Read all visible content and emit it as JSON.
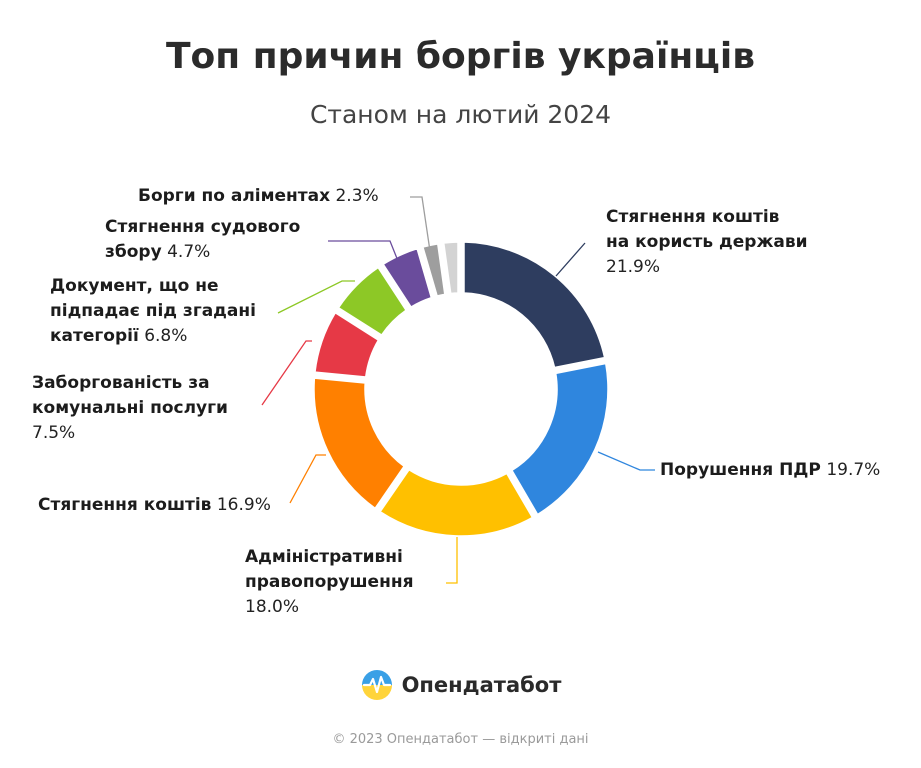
{
  "title": "Топ причин боргів українців",
  "subtitle": "Станом на лютий 2024",
  "brand": {
    "name": "Опендатабот",
    "icon": "opendatabot-logo-icon"
  },
  "footer": "© 2023 Опендатабот — відкриті дані",
  "chart_data": {
    "type": "pie",
    "subtype": "donut",
    "title": "Топ причин боргів українців",
    "subtitle": "Станом на лютий 2024",
    "unit": "%",
    "slices": [
      {
        "label_lines": [
          "Стягнення коштів",
          "на користь держави"
        ],
        "value": 21.9,
        "value_text": "21.9%",
        "color": "#2e3d5f"
      },
      {
        "label_lines": [
          "Порушення ПДР"
        ],
        "value": 19.7,
        "value_text": "19.7%",
        "color": "#2f86de"
      },
      {
        "label_lines": [
          "Адміністративні",
          "правопорушення"
        ],
        "value": 18.0,
        "value_text": "18.0%",
        "color": "#ffc000"
      },
      {
        "label_lines": [
          "Стягнення коштів"
        ],
        "value": 16.9,
        "value_text": "16.9%",
        "color": "#ff8000"
      },
      {
        "label_lines": [
          "Заборгованість за",
          "комунальні послуги"
        ],
        "value": 7.5,
        "value_text": "7.5%",
        "color": "#e63946"
      },
      {
        "label_lines": [
          "Документ, що не",
          "підпадає під згадані",
          "категорії"
        ],
        "value": 6.8,
        "value_text": "6.8%",
        "color": "#8dc826"
      },
      {
        "label_lines": [
          "Стягнення судового",
          "збору"
        ],
        "value": 4.7,
        "value_text": "4.7%",
        "color": "#6a4c9c"
      },
      {
        "label_lines": [
          "Борги по аліментах"
        ],
        "value": 2.3,
        "value_text": "2.3%",
        "color": "#9e9e9e"
      },
      {
        "label_lines": [],
        "value": 2.2,
        "value_text": "",
        "color": "#d3d3d3"
      }
    ]
  }
}
